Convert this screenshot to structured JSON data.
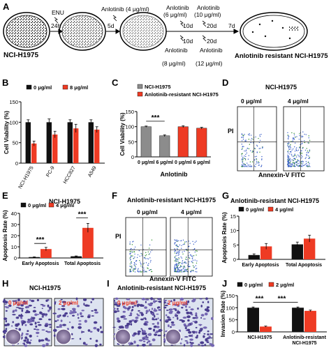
{
  "panelA": {
    "letter": "A",
    "cells": "NCI-H1975",
    "resistant": "Anlotinib resistant NCI-H1975",
    "labels": {
      "enu": "ENU",
      "t24": "24h",
      "anl4": "Anlotinib (4 μg/ml)",
      "t5": "5d",
      "anl6a": "Anlotinib",
      "anl6b": "(6 μg/ml)",
      "t10a": "10d",
      "anl10a": "Anlotinib",
      "anl10b": "(10 μg/ml)",
      "t20a": "20d",
      "t10b": "10d",
      "anl8": "(8 μg/ml)",
      "anl8top": "Anlotinib",
      "t20b": "20d",
      "anl12top": "Anlotinib",
      "anl12": "(12 μg/ml)",
      "t7": "7d"
    }
  },
  "colors": {
    "black": "#111111",
    "red": "#ee3b24",
    "gray": "#8c8c8c"
  },
  "charts": [
    {
      "id": "B",
      "letter": "B",
      "type": "bar",
      "ylabel": "Cell Viability (%)",
      "ylim": [
        0,
        150
      ],
      "yticks": [
        "0",
        "50",
        "100",
        "150"
      ],
      "categories": [
        "NCI-H1975",
        "PC-9",
        "HCC827",
        "A549"
      ],
      "legend": [
        "0 μg/ml",
        "8 μg/ml"
      ],
      "series": [
        {
          "name": "0 μg/ml",
          "values": [
            100,
            100,
            100,
            100
          ],
          "err": [
            6,
            8,
            6,
            6
          ]
        },
        {
          "name": "8 μg/ml",
          "values": [
            48,
            70,
            85,
            82
          ],
          "err": [
            6,
            8,
            10,
            7
          ]
        }
      ],
      "sig": []
    },
    {
      "id": "C",
      "letter": "C",
      "type": "bar",
      "ylabel": "Cell Viability (%)",
      "xlabel": "Anlotinib",
      "ylim": [
        0,
        150
      ],
      "yticks": [
        "0",
        "50",
        "100",
        "150"
      ],
      "categories": [
        "0 μg/ml",
        "6 μg/ml",
        "0 μg/ml",
        "6 μg/ml"
      ],
      "legend": [
        "NCI-H1975",
        "Anlotinib-resistant NCI-H1975"
      ],
      "values": [
        100,
        70,
        100,
        95
      ],
      "err": [
        2,
        3,
        3,
        3
      ],
      "barColors": [
        "gray",
        "gray",
        "red",
        "red"
      ],
      "sig": [
        {
          "label": "***",
          "from": 0,
          "to": 1,
          "y": 118
        }
      ]
    },
    {
      "id": "E",
      "letter": "E",
      "type": "bar",
      "title": "NCI-H1975",
      "ylabel": "Apoptosis Rate (%)",
      "ylim": [
        0,
        40
      ],
      "yticks": [
        "0",
        "10",
        "20",
        "30",
        "40"
      ],
      "categories": [
        "Early Apoptosis",
        "Total Apoptosis"
      ],
      "legend": [
        "0 μg/ml",
        "4 μg/ml"
      ],
      "series": [
        {
          "name": "0 μg/ml",
          "values": [
            0.8,
            1.5
          ],
          "err": [
            0.2,
            0.3
          ]
        },
        {
          "name": "4 μg/ml",
          "values": [
            8,
            27
          ],
          "err": [
            1.5,
            4
          ]
        }
      ],
      "sig": [
        {
          "label": "***",
          "g": 0,
          "y": 13
        },
        {
          "label": "***",
          "g": 1,
          "y": 36
        }
      ]
    },
    {
      "id": "G",
      "letter": "G",
      "type": "bar",
      "title": "Anlotinib-resistant NCI-H1975",
      "ylabel": "Apoptosis Rate (%)",
      "ylim": [
        0,
        15
      ],
      "yticks": [
        "0",
        "5",
        "10",
        "15"
      ],
      "categories": [
        "Early Apoptosis",
        "Total Apoptosis"
      ],
      "legend": [
        "0 μg/ml",
        "4 μg/ml"
      ],
      "series": [
        {
          "name": "0 μg/ml",
          "values": [
            1.5,
            5.2
          ],
          "err": [
            0.4,
            0.8
          ]
        },
        {
          "name": "4 μg/ml",
          "values": [
            4.5,
            7.2
          ],
          "err": [
            1.0,
            1.2
          ]
        }
      ],
      "sig": []
    },
    {
      "id": "J",
      "letter": "J",
      "type": "bar",
      "ylabel": "Invasion Rate (%)",
      "ylim": [
        0,
        150
      ],
      "yticks": [
        "0",
        "50",
        "100",
        "150"
      ],
      "categories": [
        "NCI-H1975",
        "Anlotinib-resistant NCI-H1975"
      ],
      "legend": [
        "0 μg/ml",
        "2 μg/ml"
      ],
      "series": [
        {
          "name": "0 μg/ml",
          "values": [
            100,
            100
          ],
          "err": [
            3,
            3
          ]
        },
        {
          "name": "2 μg/ml",
          "values": [
            22,
            87
          ],
          "err": [
            2,
            3
          ]
        }
      ],
      "sig": [
        {
          "label": "***",
          "from": [
            0,
            0
          ],
          "to": [
            0,
            1
          ],
          "y": 122
        },
        {
          "label": "***",
          "from": [
            0,
            1
          ],
          "to": [
            1,
            0
          ],
          "y": 122
        }
      ]
    }
  ],
  "chart_data": [
    {
      "type": "bar",
      "id": "B",
      "categories": [
        "NCI-H1975",
        "PC-9",
        "HCC827",
        "A549"
      ],
      "ylabel": "Cell Viability (%)",
      "ylim": [
        0,
        150
      ],
      "series": [
        {
          "name": "0 μg/ml",
          "values": [
            100,
            100,
            100,
            100
          ]
        },
        {
          "name": "8 μg/ml",
          "values": [
            48,
            70,
            85,
            82
          ]
        }
      ]
    },
    {
      "type": "bar",
      "id": "C",
      "categories": [
        "0 μg/ml",
        "6 μg/ml",
        "0 μg/ml",
        "6 μg/ml"
      ],
      "xlabel": "Anlotinib",
      "ylabel": "Cell Viability (%)",
      "ylim": [
        0,
        150
      ],
      "values": [
        100,
        70,
        100,
        95
      ]
    },
    {
      "type": "bar",
      "id": "E",
      "title": "NCI-H1975",
      "categories": [
        "Early Apoptosis",
        "Total Apoptosis"
      ],
      "ylabel": "Apoptosis Rate (%)",
      "ylim": [
        0,
        40
      ],
      "series": [
        {
          "name": "0 μg/ml",
          "values": [
            0.8,
            1.5
          ]
        },
        {
          "name": "4 μg/ml",
          "values": [
            8,
            27
          ]
        }
      ]
    },
    {
      "type": "bar",
      "id": "G",
      "title": "Anlotinib-resistant NCI-H1975",
      "categories": [
        "Early Apoptosis",
        "Total Apoptosis"
      ],
      "ylabel": "Apoptosis Rate (%)",
      "ylim": [
        0,
        15
      ],
      "series": [
        {
          "name": "0 μg/ml",
          "values": [
            1.5,
            5.2
          ]
        },
        {
          "name": "4 μg/ml",
          "values": [
            4.5,
            7.2
          ]
        }
      ]
    },
    {
      "type": "bar",
      "id": "J",
      "categories": [
        "NCI-H1975",
        "Anlotinib-resistant NCI-H1975"
      ],
      "ylabel": "Invasion Rate (%)",
      "ylim": [
        0,
        150
      ],
      "series": [
        {
          "name": "0 μg/ml",
          "values": [
            100,
            100
          ]
        },
        {
          "name": "2 μg/ml",
          "values": [
            22,
            87
          ]
        }
      ]
    }
  ],
  "flow": {
    "D": {
      "letter": "D",
      "title": "NCI-H1975",
      "dose1": "0 μg/ml",
      "dose2": "4 μg/ml",
      "ylabel": "PI",
      "xlabel": "Annexin-V FITC"
    },
    "F": {
      "letter": "F",
      "title": "Anlotinib-resistant NCI-H1975",
      "dose1": "0 μg/ml",
      "dose2": "4 μg/ml",
      "ylabel": "PI",
      "xlabel": "Annexin-V FITC"
    }
  },
  "invasion": {
    "H": {
      "letter": "H",
      "title": "NCI-H1975",
      "dose1": "0 μg/ml",
      "dose2": "2 μg/ml"
    },
    "I": {
      "letter": "I",
      "title": "Anlotinib-resistant NCI-H1975",
      "dose1": "0 μg/ml",
      "dose2": "2 μg/ml"
    }
  }
}
